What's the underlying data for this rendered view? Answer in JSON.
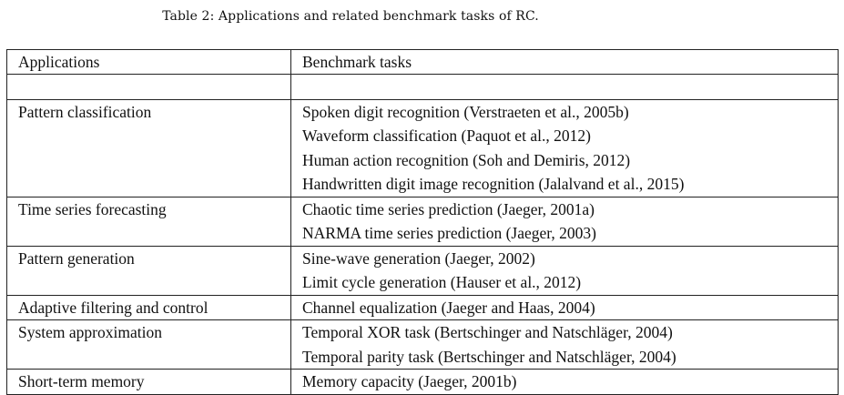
{
  "caption": "Table 2: Applications and related benchmark tasks of RC.",
  "table": {
    "headers": [
      "Applications",
      "Benchmark tasks"
    ],
    "groups": [
      {
        "application": "Pattern classification",
        "tasks": [
          "Spoken digit recognition (Verstraeten et al., 2005b)",
          "Waveform classification (Paquot et al., 2012)",
          "Human action recognition (Soh and Demiris, 2012)",
          "Handwritten digit image recognition (Jalalvand et al., 2015)"
        ]
      },
      {
        "application": "Time series forecasting",
        "tasks": [
          "Chaotic time series prediction (Jaeger, 2001a)",
          "NARMA time series prediction (Jaeger, 2003)"
        ]
      },
      {
        "application": "Pattern generation",
        "tasks": [
          "Sine-wave generation (Jaeger, 2002)",
          "Limit cycle generation (Hauser et al., 2012)"
        ]
      },
      {
        "application": "Adaptive filtering and control",
        "tasks": [
          "Channel equalization (Jaeger and Haas, 2004)"
        ]
      },
      {
        "application": "System approximation",
        "tasks": [
          "Temporal XOR task (Bertschinger and Natschläger, 2004)",
          "Temporal parity task (Bertschinger and Natschläger, 2004)"
        ]
      },
      {
        "application": "Short-term memory",
        "tasks": [
          "Memory capacity (Jaeger, 2001b)"
        ]
      }
    ]
  }
}
